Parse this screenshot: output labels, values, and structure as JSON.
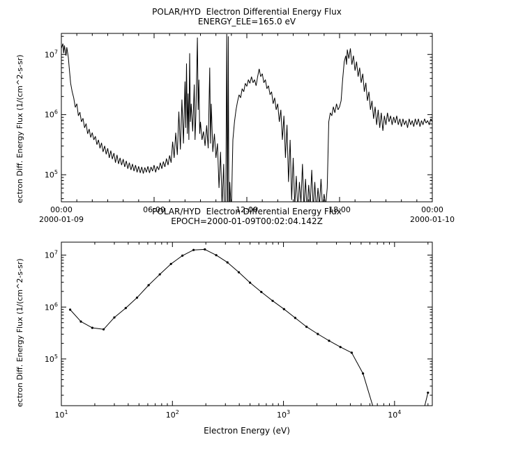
{
  "colors": {
    "line": "#000000",
    "background": "#ffffff"
  },
  "chart_data": [
    {
      "id": "top",
      "type": "line",
      "title": "POLAR/HYD  Electron Differential Energy Flux",
      "subtitle": "ENERGY_ELE=165.0 eV",
      "ylabel": "ectron Diff. Energy Flux (1/(cm^2-s-sr)",
      "x_axis": "time (hours of 2000-01-09)",
      "x_range_hours": [
        0,
        24
      ],
      "x_ticks": [
        {
          "t": 0,
          "label": "00:00",
          "date": "2000-01-09"
        },
        {
          "t": 6,
          "label": "06:00"
        },
        {
          "t": 12,
          "label": "12:00"
        },
        {
          "t": 18,
          "label": "18:00"
        },
        {
          "t": 24,
          "label": "00:00",
          "date": "2000-01-10"
        }
      ],
      "y_scale": "log10",
      "y_exp_range": [
        4.55,
        7.35
      ],
      "y_tick_exps": [
        5,
        6,
        7
      ],
      "points": [
        [
          0,
          7.1
        ],
        [
          0.1,
          7.18
        ],
        [
          0.15,
          7.02
        ],
        [
          0.2,
          7.15
        ],
        [
          0.3,
          6.98
        ],
        [
          0.35,
          7.12
        ],
        [
          0.45,
          6.95
        ],
        [
          0.5,
          6.8
        ],
        [
          0.6,
          6.52
        ],
        [
          0.7,
          6.38
        ],
        [
          0.8,
          6.28
        ],
        [
          0.9,
          6.12
        ],
        [
          1,
          6.18
        ],
        [
          1.1,
          5.98
        ],
        [
          1.2,
          6.04
        ],
        [
          1.3,
          5.88
        ],
        [
          1.4,
          5.94
        ],
        [
          1.5,
          5.78
        ],
        [
          1.6,
          5.85
        ],
        [
          1.7,
          5.68
        ],
        [
          1.8,
          5.76
        ],
        [
          1.9,
          5.62
        ],
        [
          2,
          5.7
        ],
        [
          2.1,
          5.58
        ],
        [
          2.2,
          5.64
        ],
        [
          2.3,
          5.5
        ],
        [
          2.4,
          5.58
        ],
        [
          2.5,
          5.44
        ],
        [
          2.6,
          5.53
        ],
        [
          2.7,
          5.38
        ],
        [
          2.8,
          5.48
        ],
        [
          2.9,
          5.34
        ],
        [
          3,
          5.44
        ],
        [
          3.1,
          5.28
        ],
        [
          3.2,
          5.4
        ],
        [
          3.3,
          5.26
        ],
        [
          3.4,
          5.36
        ],
        [
          3.5,
          5.2
        ],
        [
          3.6,
          5.33
        ],
        [
          3.7,
          5.18
        ],
        [
          3.8,
          5.28
        ],
        [
          3.9,
          5.16
        ],
        [
          4,
          5.26
        ],
        [
          4.1,
          5.13
        ],
        [
          4.2,
          5.23
        ],
        [
          4.3,
          5.1
        ],
        [
          4.4,
          5.2
        ],
        [
          4.5,
          5.08
        ],
        [
          4.6,
          5.18
        ],
        [
          4.7,
          5.06
        ],
        [
          4.8,
          5.16
        ],
        [
          4.9,
          5.04
        ],
        [
          5,
          5.14
        ],
        [
          5.1,
          5.03
        ],
        [
          5.2,
          5.13
        ],
        [
          5.3,
          5.02
        ],
        [
          5.4,
          5.12
        ],
        [
          5.5,
          5.04
        ],
        [
          5.6,
          5.14
        ],
        [
          5.7,
          5.03
        ],
        [
          5.8,
          5.13
        ],
        [
          5.9,
          5.06
        ],
        [
          6,
          5.16
        ],
        [
          6.1,
          5.04
        ],
        [
          6.2,
          5.14
        ],
        [
          6.3,
          5.08
        ],
        [
          6.4,
          5.2
        ],
        [
          6.5,
          5.1
        ],
        [
          6.6,
          5.22
        ],
        [
          6.7,
          5.13
        ],
        [
          6.8,
          5.27
        ],
        [
          6.9,
          5.16
        ],
        [
          7,
          5.32
        ],
        [
          7.1,
          5.2
        ],
        [
          7.2,
          5.55
        ],
        [
          7.3,
          5.28
        ],
        [
          7.4,
          5.7
        ],
        [
          7.5,
          5.33
        ],
        [
          7.6,
          6.05
        ],
        [
          7.7,
          5.42
        ],
        [
          7.8,
          6.25
        ],
        [
          7.9,
          5.52
        ],
        [
          8,
          6.55
        ],
        [
          8.05,
          5.78
        ],
        [
          8.1,
          6.85
        ],
        [
          8.15,
          5.68
        ],
        [
          8.2,
          6.35
        ],
        [
          8.25,
          5.58
        ],
        [
          8.3,
          7.02
        ],
        [
          8.35,
          5.88
        ],
        [
          8.4,
          6.18
        ],
        [
          8.5,
          5.72
        ],
        [
          8.6,
          6.5
        ],
        [
          8.65,
          5.58
        ],
        [
          8.7,
          5.98
        ],
        [
          8.8,
          7.28
        ],
        [
          8.85,
          6.08
        ],
        [
          8.9,
          6.58
        ],
        [
          8.95,
          5.68
        ],
        [
          9,
          5.88
        ],
        [
          9.1,
          5.58
        ],
        [
          9.2,
          5.72
        ],
        [
          9.3,
          5.48
        ],
        [
          9.4,
          5.82
        ],
        [
          9.5,
          5.44
        ],
        [
          9.6,
          6.78
        ],
        [
          9.65,
          5.52
        ],
        [
          9.7,
          6.18
        ],
        [
          9.8,
          5.38
        ],
        [
          9.9,
          5.68
        ],
        [
          10,
          5.28
        ],
        [
          10.1,
          5.52
        ],
        [
          10.2,
          4.78
        ],
        [
          10.3,
          5.38
        ],
        [
          10.4,
          4.48
        ],
        [
          10.5,
          5.18
        ],
        [
          10.6,
          3.6
        ],
        [
          10.65,
          5.08
        ],
        [
          10.7,
          7.34
        ],
        [
          10.75,
          4.18
        ],
        [
          10.8,
          7.3
        ],
        [
          10.85,
          3.5
        ],
        [
          10.9,
          4.88
        ],
        [
          11,
          4.38
        ],
        [
          11.1,
          5.58
        ],
        [
          11.2,
          5.88
        ],
        [
          11.3,
          6.08
        ],
        [
          11.4,
          6.22
        ],
        [
          11.5,
          6.33
        ],
        [
          11.6,
          6.28
        ],
        [
          11.7,
          6.43
        ],
        [
          11.8,
          6.38
        ],
        [
          11.9,
          6.52
        ],
        [
          12,
          6.47
        ],
        [
          12.1,
          6.58
        ],
        [
          12.2,
          6.52
        ],
        [
          12.3,
          6.63
        ],
        [
          12.4,
          6.53
        ],
        [
          12.5,
          6.58
        ],
        [
          12.6,
          6.48
        ],
        [
          12.7,
          6.63
        ],
        [
          12.8,
          6.76
        ],
        [
          12.9,
          6.63
        ],
        [
          13,
          6.68
        ],
        [
          13.1,
          6.53
        ],
        [
          13.2,
          6.58
        ],
        [
          13.3,
          6.43
        ],
        [
          13.4,
          6.48
        ],
        [
          13.5,
          6.33
        ],
        [
          13.6,
          6.38
        ],
        [
          13.7,
          6.18
        ],
        [
          13.8,
          6.28
        ],
        [
          13.9,
          6.08
        ],
        [
          14,
          6.18
        ],
        [
          14.1,
          5.88
        ],
        [
          14.2,
          6.08
        ],
        [
          14.3,
          5.58
        ],
        [
          14.4,
          5.98
        ],
        [
          14.5,
          5.28
        ],
        [
          14.6,
          5.83
        ],
        [
          14.7,
          4.88
        ],
        [
          14.8,
          5.58
        ],
        [
          14.9,
          4.58
        ],
        [
          15,
          5.28
        ],
        [
          15.1,
          4.48
        ],
        [
          15.2,
          4.98
        ],
        [
          15.3,
          4.38
        ],
        [
          15.4,
          4.88
        ],
        [
          15.5,
          4.53
        ],
        [
          15.6,
          5.18
        ],
        [
          15.7,
          4.43
        ],
        [
          15.8,
          4.93
        ],
        [
          15.9,
          4.38
        ],
        [
          16,
          4.83
        ],
        [
          16.1,
          4.48
        ],
        [
          16.2,
          5.08
        ],
        [
          16.3,
          4.43
        ],
        [
          16.4,
          4.88
        ],
        [
          16.5,
          4.38
        ],
        [
          16.6,
          4.78
        ],
        [
          16.7,
          4.48
        ],
        [
          16.8,
          4.93
        ],
        [
          16.9,
          4.43
        ],
        [
          17,
          4.68
        ],
        [
          17.1,
          4.48
        ],
        [
          17.2,
          4.78
        ],
        [
          17.3,
          5.88
        ],
        [
          17.4,
          6.03
        ],
        [
          17.5,
          5.98
        ],
        [
          17.6,
          6.13
        ],
        [
          17.7,
          6.03
        ],
        [
          17.8,
          6.18
        ],
        [
          17.9,
          6.08
        ],
        [
          18,
          6.13
        ],
        [
          18.1,
          6.23
        ],
        [
          18.2,
          6.58
        ],
        [
          18.3,
          6.88
        ],
        [
          18.4,
          6.98
        ],
        [
          18.45,
          6.83
        ],
        [
          18.5,
          7.08
        ],
        [
          18.6,
          6.93
        ],
        [
          18.7,
          7.1
        ],
        [
          18.8,
          6.83
        ],
        [
          18.9,
          6.98
        ],
        [
          19,
          6.73
        ],
        [
          19.1,
          6.88
        ],
        [
          19.2,
          6.63
        ],
        [
          19.3,
          6.78
        ],
        [
          19.4,
          6.53
        ],
        [
          19.5,
          6.68
        ],
        [
          19.6,
          6.38
        ],
        [
          19.7,
          6.53
        ],
        [
          19.8,
          6.23
        ],
        [
          19.9,
          6.38
        ],
        [
          20,
          6.08
        ],
        [
          20.1,
          6.23
        ],
        [
          20.2,
          5.93
        ],
        [
          20.3,
          6.13
        ],
        [
          20.4,
          5.83
        ],
        [
          20.5,
          6.08
        ],
        [
          20.6,
          5.78
        ],
        [
          20.7,
          6.03
        ],
        [
          20.8,
          5.73
        ],
        [
          20.9,
          5.98
        ],
        [
          21,
          5.83
        ],
        [
          21.1,
          6.03
        ],
        [
          21.2,
          5.88
        ],
        [
          21.3,
          5.98
        ],
        [
          21.4,
          5.83
        ],
        [
          21.5,
          5.96
        ],
        [
          21.6,
          5.86
        ],
        [
          21.7,
          5.98
        ],
        [
          21.8,
          5.83
        ],
        [
          21.9,
          5.93
        ],
        [
          22,
          5.8
        ],
        [
          22.1,
          5.93
        ],
        [
          22.2,
          5.83
        ],
        [
          22.3,
          5.9
        ],
        [
          22.4,
          5.78
        ],
        [
          22.5,
          5.93
        ],
        [
          22.6,
          5.83
        ],
        [
          22.7,
          5.9
        ],
        [
          22.8,
          5.8
        ],
        [
          22.9,
          5.93
        ],
        [
          23,
          5.83
        ],
        [
          23.1,
          5.93
        ],
        [
          23.2,
          5.8
        ],
        [
          23.3,
          5.9
        ],
        [
          23.4,
          5.83
        ],
        [
          23.5,
          5.93
        ],
        [
          23.6,
          5.86
        ],
        [
          23.7,
          5.9
        ],
        [
          23.8,
          5.83
        ],
        [
          23.9,
          5.93
        ],
        [
          24,
          5.88
        ]
      ]
    },
    {
      "id": "bottom",
      "type": "line",
      "marker": "dot",
      "title": "POLAR/HYD  Electron Differential Energy Flux",
      "subtitle": "EPOCH=2000-01-09T00:02:04.142Z",
      "xlabel": "Electron Energy (eV)",
      "ylabel": "ectron Diff. Energy Flux (1/(cm^2-s-sr)",
      "x_scale": "log10",
      "x_exp_range": [
        1,
        4.34
      ],
      "x_tick_exps": [
        1,
        2,
        3,
        4
      ],
      "y_scale": "log10",
      "y_exp_range": [
        4.1,
        7.25
      ],
      "y_tick_exps": [
        5,
        6,
        7
      ],
      "points": [
        [
          12,
          5.95
        ],
        [
          15,
          5.72
        ],
        [
          19,
          5.6
        ],
        [
          24,
          5.57
        ],
        [
          30,
          5.8
        ],
        [
          38,
          5.98
        ],
        [
          48,
          6.18
        ],
        [
          61,
          6.42
        ],
        [
          77,
          6.63
        ],
        [
          97,
          6.83
        ],
        [
          123,
          6.99
        ],
        [
          155,
          7.1
        ],
        [
          196,
          7.11
        ],
        [
          248,
          7.0
        ],
        [
          313,
          6.86
        ],
        [
          396,
          6.67
        ],
        [
          500,
          6.47
        ],
        [
          632,
          6.29
        ],
        [
          799,
          6.12
        ],
        [
          1010,
          5.96
        ],
        [
          1276,
          5.79
        ],
        [
          1613,
          5.62
        ],
        [
          2038,
          5.48
        ],
        [
          2576,
          5.35
        ],
        [
          3256,
          5.23
        ],
        [
          4115,
          5.12
        ],
        [
          5200,
          4.72
        ],
        [
          6573,
          4.0
        ],
        [
          8300,
          3.6
        ],
        [
          17500,
          3.85
        ],
        [
          20000,
          4.35
        ]
      ]
    }
  ]
}
